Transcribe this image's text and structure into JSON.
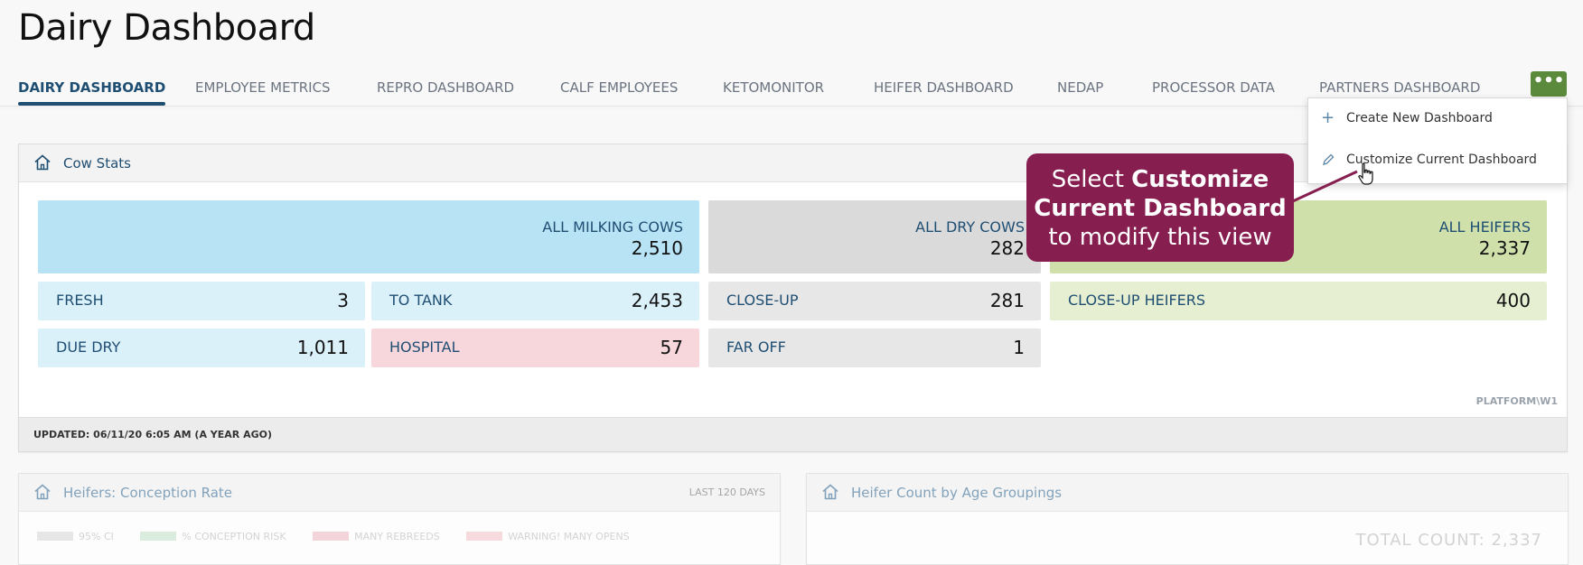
{
  "page": {
    "title": "Dairy Dashboard"
  },
  "tabs": [
    {
      "label": "DAIRY DASHBOARD",
      "active": true
    },
    {
      "label": "EMPLOYEE METRICS"
    },
    {
      "label": "REPRO DASHBOARD"
    },
    {
      "label": "CALF EMPLOYEES"
    },
    {
      "label": "KETOMONITOR"
    },
    {
      "label": "HEIFER DASHBOARD"
    },
    {
      "label": "NEDAP"
    },
    {
      "label": "PROCESSOR DATA"
    },
    {
      "label": "PARTNERS DASHBOARD"
    }
  ],
  "more_button": {
    "label": "•••",
    "color": "#5b8a3c"
  },
  "menu": {
    "items": [
      {
        "icon": "plus-icon",
        "label": "Create New Dashboard"
      },
      {
        "icon": "pencil-icon",
        "label": "Customize Current Dashboard"
      }
    ]
  },
  "callout": {
    "text_before": "Select ",
    "bold": "Customize Current Dashboard",
    "text_after": " to modify this view",
    "color": "#861e4f"
  },
  "cow_stats": {
    "title": "Cow Stats",
    "icon": "home-icon",
    "groups": {
      "milking": {
        "label": "ALL MILKING COWS",
        "value": "2,510"
      },
      "dry": {
        "label": "ALL DRY COWS",
        "value": "282"
      },
      "heifers": {
        "label": "ALL HEIFERS",
        "value": "2,337"
      }
    },
    "stats": {
      "fresh": {
        "label": "FRESH",
        "value": "3"
      },
      "to_tank": {
        "label": "TO TANK",
        "value": "2,453"
      },
      "close_up": {
        "label": "CLOSE-UP",
        "value": "281"
      },
      "close_up_heifers": {
        "label": "CLOSE-UP HEIFERS",
        "value": "400"
      },
      "due_dry": {
        "label": "DUE DRY",
        "value": "1,011"
      },
      "hospital": {
        "label": "HOSPITAL",
        "value": "57"
      },
      "far_off": {
        "label": "FAR OFF",
        "value": "1"
      }
    },
    "platform": "PLATFORM\\W1",
    "updated": "UPDATED: 06/11/20 6:05 AM (A YEAR AGO)"
  },
  "heifers_conception": {
    "title": "Heifers: Conception Rate",
    "range": "LAST 120 DAYS",
    "legend": [
      "95% CI",
      "% CONCEPTION RISK",
      "MANY REBREEDS",
      "WARNING! MANY OPENS"
    ]
  },
  "heifer_count": {
    "title": "Heifer Count by Age Groupings",
    "total": "TOTAL COUNT: 2,337"
  },
  "colors": {
    "milking": "#b8e3f5",
    "dry": "#dadada",
    "heifers": "#cfe0ab",
    "hospital": "#f7d7dc",
    "accent": "#1f4e73"
  }
}
